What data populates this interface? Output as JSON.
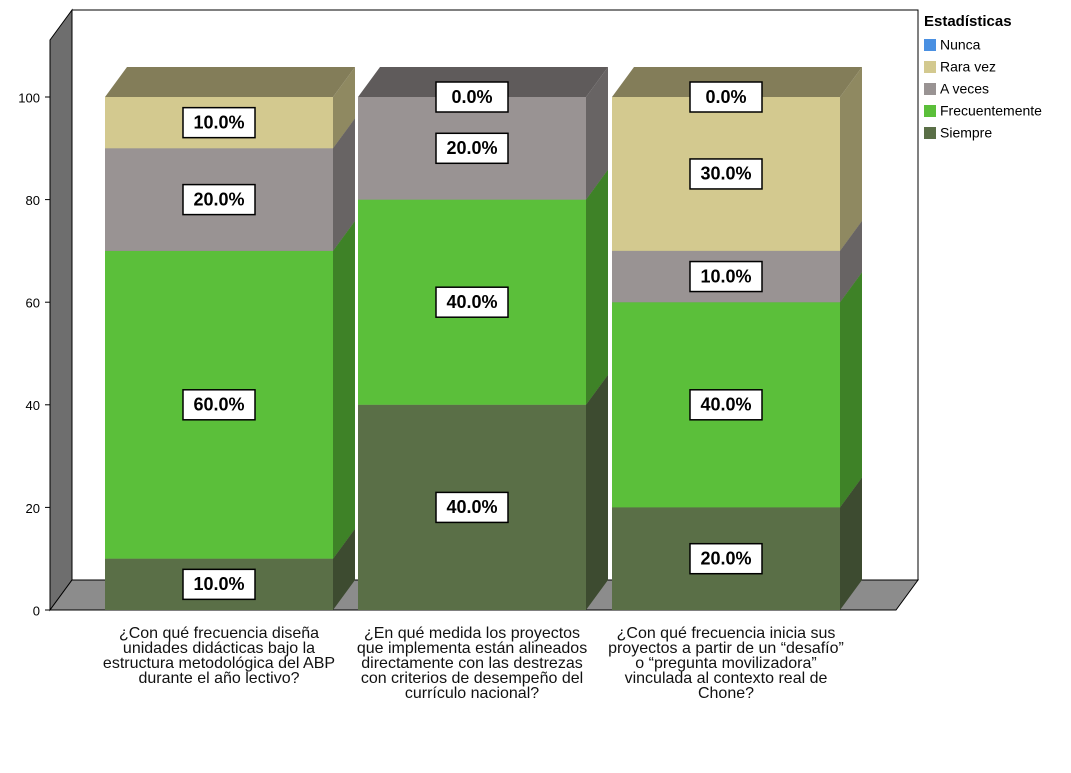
{
  "chart_data": {
    "type": "stacked-bar-3d",
    "legend_title": "Estadísticas",
    "legend": "right",
    "categories": [
      "¿Con qué frecuencia diseña unidades didácticas bajo la estructura metodológica del ABP durante el año lectivo?",
      "¿En qué medida los proyectos que implementa están alineados directamente con las destrezas con criterios de desempeño del currículo nacional?",
      "¿Con qué frecuencia inicia sus proyectos a partir de un “desafío” o “pregunta movilizadora” vinculada al contexto real de Chone?"
    ],
    "series": [
      {
        "name": "Nunca",
        "color": "#4a90e2",
        "values": [
          null,
          null,
          0
        ],
        "value_labels": [
          null,
          null,
          "0.0%"
        ]
      },
      {
        "name": "Rara vez",
        "color": "#d3c98f",
        "values": [
          10,
          0,
          30
        ],
        "value_labels": [
          "10.0%",
          "0.0%",
          "30.0%"
        ]
      },
      {
        "name": "A veces",
        "color": "#999393",
        "values": [
          20,
          20,
          10
        ],
        "value_labels": [
          "20.0%",
          "20.0%",
          "10.0%"
        ]
      },
      {
        "name": "Frecuentemente",
        "color": "#5bbf3a",
        "values": [
          60,
          40,
          40
        ],
        "value_labels": [
          "60.0%",
          "40.0%",
          "40.0%"
        ]
      },
      {
        "name": "Siempre",
        "color": "#5a6f47",
        "values": [
          10,
          40,
          20
        ],
        "value_labels": [
          "10.0%",
          "40.0%",
          "20.0%"
        ]
      }
    ],
    "ylim": [
      0,
      100
    ],
    "yticks": [
      0,
      20,
      40,
      60,
      80,
      100
    ]
  }
}
